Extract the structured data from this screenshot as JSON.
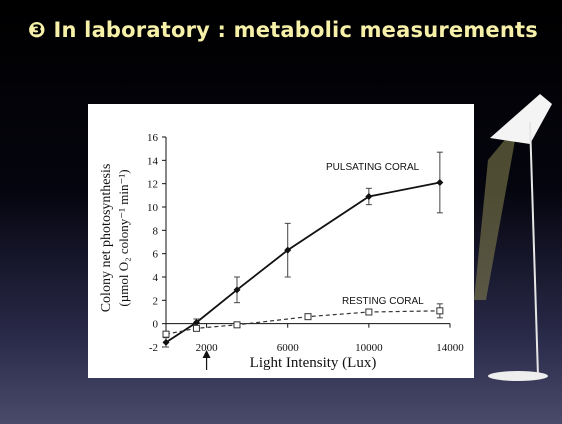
{
  "slide": {
    "title": "❸ In laboratory : metabolic measurements"
  },
  "chart_data": {
    "type": "line",
    "xlabel": "Light Intensity (Lux)",
    "ylabel_line1": "Colony net photosynthesis",
    "ylabel_line2": "(µmol O₂ colony⁻¹ min⁻¹)",
    "xlim": [
      0,
      14000
    ],
    "ylim": [
      -2,
      16
    ],
    "x_ticks": [
      2000,
      6000,
      10000,
      14000
    ],
    "y_ticks": [
      -2,
      0,
      2,
      4,
      6,
      8,
      10,
      12,
      14,
      16
    ],
    "grid": false,
    "arrow_at_x": 2000,
    "series": [
      {
        "name": "PULSATING CORAL",
        "style": "solid",
        "marker": "filled-diamond",
        "color": "#111111",
        "x": [
          0,
          1500,
          3500,
          6000,
          10000,
          13500
        ],
        "y": [
          -1.6,
          0.1,
          2.9,
          6.3,
          10.9,
          12.1
        ],
        "err": [
          0.4,
          0.3,
          1.1,
          2.3,
          0.7,
          2.6
        ]
      },
      {
        "name": "RESTING CORAL",
        "style": "dashed",
        "marker": "open-square",
        "color": "#333333",
        "x": [
          0,
          1500,
          3500,
          7000,
          10000,
          13500
        ],
        "y": [
          -0.9,
          -0.4,
          -0.1,
          0.6,
          1.0,
          1.1
        ],
        "err": [
          0.2,
          0.2,
          0.2,
          0.2,
          0.2,
          0.6
        ]
      }
    ]
  }
}
